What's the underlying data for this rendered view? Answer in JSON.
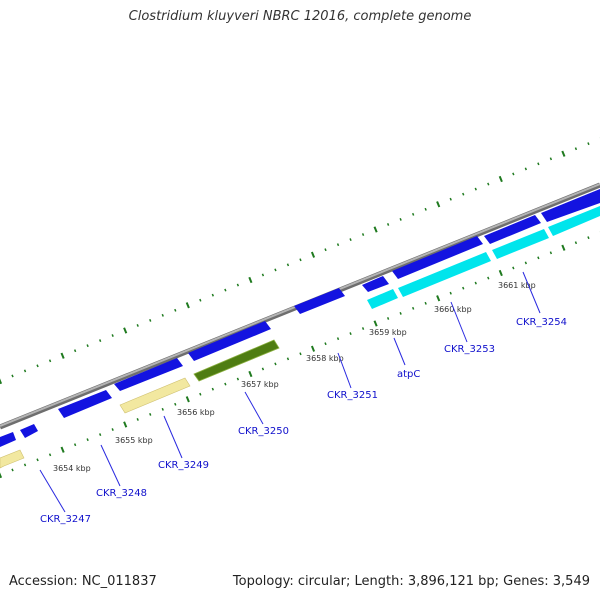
{
  "title": "Clostridium kluyveri NBRC 12016, complete genome",
  "footer": {
    "accession": "Accession: NC_011837",
    "summary": "Topology: circular; Length: 3,896,121 bp; Genes: 3,549"
  },
  "colors": {
    "backbone": "#8a8a8a",
    "ticks": "#1f7a1f",
    "cds": "#1313e0",
    "rrna_like": "#f2e8a0",
    "trna_like": "#4f7d12",
    "atp_operon": "#00e5ec",
    "label_text": "#1010cc",
    "connector": "#2a2ae0"
  },
  "ruler": {
    "unit": "kbp",
    "labels": [
      "3654 kbp",
      "3655 kbp",
      "3656 kbp",
      "3657 kbp",
      "3658 kbp",
      "3659 kbp",
      "3660 kbp",
      "3661 kbp"
    ]
  },
  "genes": [
    {
      "label": "CKR_3247",
      "color": "cds"
    },
    {
      "label": "CKR_3248",
      "color": "cds"
    },
    {
      "label": "CKR_3249",
      "color": "cds"
    },
    {
      "label": "CKR_3250",
      "color": "cds"
    },
    {
      "label": "CKR_3251",
      "color": "cds"
    },
    {
      "label": "atpC",
      "color": "atp_operon"
    },
    {
      "label": "CKR_3253",
      "color": "atp_operon"
    },
    {
      "label": "CKR_3254",
      "color": "atp_operon"
    }
  ]
}
